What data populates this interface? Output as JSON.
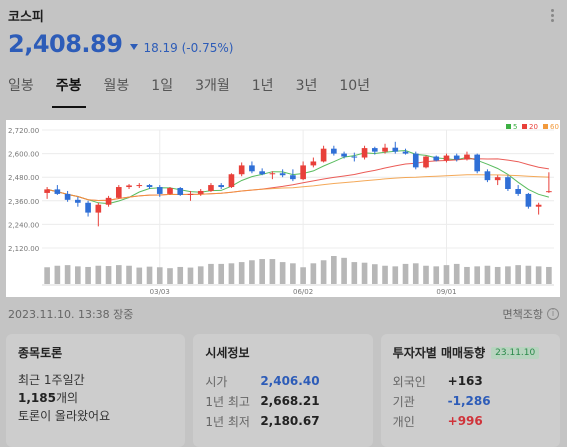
{
  "header": {
    "stock_name": "코스피"
  },
  "quote": {
    "price": "2,408.89",
    "change_text": "18.19 (-0.75%)",
    "direction": "down",
    "color": "#2d5cb8"
  },
  "tabs": [
    {
      "label": "일봉",
      "active": false
    },
    {
      "label": "주봉",
      "active": true
    },
    {
      "label": "월봉",
      "active": false
    },
    {
      "label": "1일",
      "active": false
    },
    {
      "label": "3개월",
      "active": false
    },
    {
      "label": "1년",
      "active": false
    },
    {
      "label": "3년",
      "active": false
    },
    {
      "label": "10년",
      "active": false
    }
  ],
  "chart_data": {
    "type": "candlestick",
    "yticks": [
      "2,720.00",
      "2,600.00",
      "2,480.00",
      "2,360.00",
      "2,240.00",
      "2,120.00"
    ],
    "ylim": [
      2120,
      2720
    ],
    "xticks": [
      "03/03",
      "06/02",
      "09/01"
    ],
    "legend": [
      {
        "label": "5",
        "color": "#3cb043"
      },
      {
        "label": "20",
        "color": "#e8403a"
      },
      {
        "label": "60",
        "color": "#f29a3c"
      }
    ],
    "up_color": "#e8403a",
    "down_color": "#2f6fd6",
    "candles": [
      {
        "o": 2400,
        "h": 2430,
        "l": 2370,
        "c": 2418
      },
      {
        "o": 2418,
        "h": 2440,
        "l": 2390,
        "c": 2395
      },
      {
        "o": 2395,
        "h": 2410,
        "l": 2355,
        "c": 2365
      },
      {
        "o": 2365,
        "h": 2380,
        "l": 2330,
        "c": 2350
      },
      {
        "o": 2350,
        "h": 2360,
        "l": 2280,
        "c": 2300
      },
      {
        "o": 2300,
        "h": 2350,
        "l": 2230,
        "c": 2340
      },
      {
        "o": 2340,
        "h": 2385,
        "l": 2330,
        "c": 2375
      },
      {
        "o": 2375,
        "h": 2440,
        "l": 2370,
        "c": 2430
      },
      {
        "o": 2430,
        "h": 2445,
        "l": 2420,
        "c": 2438
      },
      {
        "o": 2438,
        "h": 2450,
        "l": 2425,
        "c": 2440
      },
      {
        "o": 2440,
        "h": 2445,
        "l": 2420,
        "c": 2430
      },
      {
        "o": 2430,
        "h": 2440,
        "l": 2380,
        "c": 2395
      },
      {
        "o": 2395,
        "h": 2430,
        "l": 2390,
        "c": 2425
      },
      {
        "o": 2425,
        "h": 2430,
        "l": 2385,
        "c": 2390
      },
      {
        "o": 2390,
        "h": 2410,
        "l": 2360,
        "c": 2395
      },
      {
        "o": 2395,
        "h": 2420,
        "l": 2385,
        "c": 2410
      },
      {
        "o": 2410,
        "h": 2450,
        "l": 2405,
        "c": 2440
      },
      {
        "o": 2440,
        "h": 2450,
        "l": 2420,
        "c": 2430
      },
      {
        "o": 2430,
        "h": 2500,
        "l": 2425,
        "c": 2495
      },
      {
        "o": 2495,
        "h": 2555,
        "l": 2485,
        "c": 2540
      },
      {
        "o": 2540,
        "h": 2560,
        "l": 2500,
        "c": 2510
      },
      {
        "o": 2510,
        "h": 2525,
        "l": 2490,
        "c": 2495
      },
      {
        "o": 2495,
        "h": 2510,
        "l": 2470,
        "c": 2500
      },
      {
        "o": 2500,
        "h": 2520,
        "l": 2480,
        "c": 2490
      },
      {
        "o": 2490,
        "h": 2520,
        "l": 2460,
        "c": 2470
      },
      {
        "o": 2470,
        "h": 2560,
        "l": 2465,
        "c": 2540
      },
      {
        "o": 2540,
        "h": 2580,
        "l": 2530,
        "c": 2560
      },
      {
        "o": 2560,
        "h": 2640,
        "l": 2555,
        "c": 2625
      },
      {
        "o": 2625,
        "h": 2640,
        "l": 2590,
        "c": 2600
      },
      {
        "o": 2600,
        "h": 2610,
        "l": 2575,
        "c": 2585
      },
      {
        "o": 2585,
        "h": 2605,
        "l": 2560,
        "c": 2580
      },
      {
        "o": 2580,
        "h": 2640,
        "l": 2570,
        "c": 2628
      },
      {
        "o": 2628,
        "h": 2635,
        "l": 2595,
        "c": 2610
      },
      {
        "o": 2610,
        "h": 2650,
        "l": 2600,
        "c": 2630
      },
      {
        "o": 2630,
        "h": 2660,
        "l": 2600,
        "c": 2610
      },
      {
        "o": 2610,
        "h": 2625,
        "l": 2595,
        "c": 2600
      },
      {
        "o": 2600,
        "h": 2610,
        "l": 2520,
        "c": 2530
      },
      {
        "o": 2530,
        "h": 2590,
        "l": 2525,
        "c": 2585
      },
      {
        "o": 2585,
        "h": 2590,
        "l": 2560,
        "c": 2565
      },
      {
        "o": 2565,
        "h": 2600,
        "l": 2555,
        "c": 2590
      },
      {
        "o": 2590,
        "h": 2600,
        "l": 2560,
        "c": 2570
      },
      {
        "o": 2570,
        "h": 2610,
        "l": 2565,
        "c": 2595
      },
      {
        "o": 2595,
        "h": 2600,
        "l": 2500,
        "c": 2510
      },
      {
        "o": 2510,
        "h": 2520,
        "l": 2455,
        "c": 2465
      },
      {
        "o": 2465,
        "h": 2490,
        "l": 2440,
        "c": 2480
      },
      {
        "o": 2480,
        "h": 2490,
        "l": 2410,
        "c": 2420
      },
      {
        "o": 2420,
        "h": 2440,
        "l": 2385,
        "c": 2395
      },
      {
        "o": 2395,
        "h": 2400,
        "l": 2320,
        "c": 2330
      },
      {
        "o": 2330,
        "h": 2350,
        "l": 2290,
        "c": 2340
      },
      {
        "o": 2408,
        "h": 2505,
        "l": 2400,
        "c": 2409
      }
    ],
    "volumes": [
      55,
      60,
      62,
      58,
      56,
      60,
      59,
      62,
      60,
      54,
      57,
      55,
      52,
      56,
      54,
      58,
      66,
      66,
      68,
      72,
      78,
      82,
      82,
      72,
      68,
      55,
      68,
      78,
      92,
      86,
      72,
      70,
      65,
      60,
      58,
      66,
      68,
      60,
      58,
      62,
      66,
      56,
      58,
      60,
      56,
      58,
      62,
      60,
      58,
      56
    ]
  },
  "meta": {
    "timestamp": "2023.11.10. 13:38 장중",
    "disclaimer": "면책조항",
    "info_glyph": "i"
  },
  "cards": {
    "discussion": {
      "title": "종목토론",
      "line1": "최근 1주일간",
      "count": "1,185",
      "count_suffix": "개의",
      "line3": "토론이 올라왔어요"
    },
    "market_info": {
      "title": "시세정보",
      "rows": [
        {
          "label": "시가",
          "value": "2,406.40",
          "color": "blue"
        },
        {
          "label": "1년 최고",
          "value": "2,668.21",
          "color": "none"
        },
        {
          "label": "1년 최저",
          "value": "2,180.67",
          "color": "none"
        }
      ]
    },
    "investors": {
      "title": "투자자별 매매동향",
      "date": "23.11.10",
      "rows": [
        {
          "label": "외국인",
          "value": "+163",
          "color": "none"
        },
        {
          "label": "기관",
          "value": "-1,286",
          "color": "blue"
        },
        {
          "label": "개인",
          "value": "+996",
          "color": "red"
        }
      ]
    }
  }
}
